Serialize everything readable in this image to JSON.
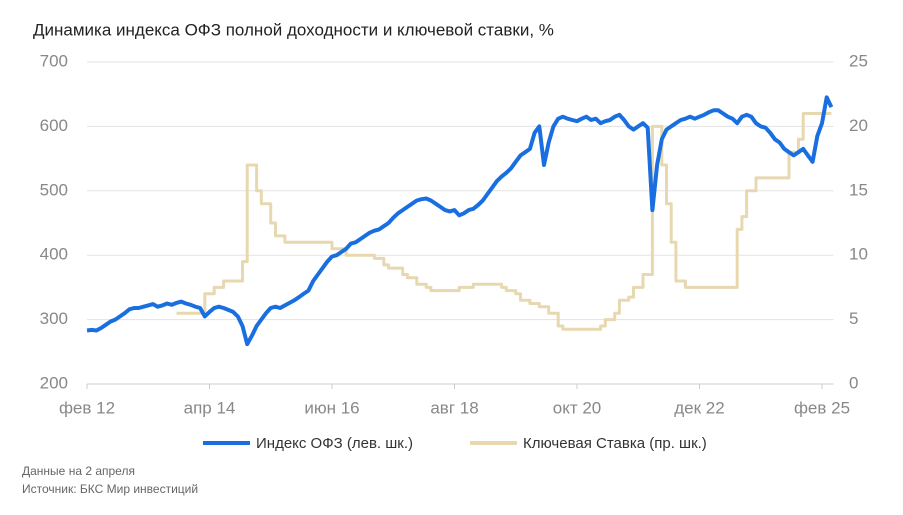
{
  "chart_data": {
    "type": "line",
    "title": "Динамика индекса ОФЗ полной доходности и ключевой ставки, %",
    "note": "Данные на 2 апреля",
    "source": "Источник: БКС Мир инвестиций",
    "x": [
      "2012-02",
      "2012-03",
      "2012-04",
      "2012-05",
      "2012-06",
      "2012-07",
      "2012-08",
      "2012-09",
      "2012-10",
      "2012-11",
      "2012-12",
      "2013-01",
      "2013-02",
      "2013-03",
      "2013-04",
      "2013-05",
      "2013-06",
      "2013-07",
      "2013-08",
      "2013-09",
      "2013-10",
      "2013-11",
      "2013-12",
      "2014-01",
      "2014-02",
      "2014-03",
      "2014-04",
      "2014-05",
      "2014-06",
      "2014-07",
      "2014-08",
      "2014-09",
      "2014-10",
      "2014-11",
      "2014-12",
      "2015-01",
      "2015-02",
      "2015-03",
      "2015-04",
      "2015-05",
      "2015-06",
      "2015-07",
      "2015-08",
      "2015-09",
      "2015-10",
      "2015-11",
      "2015-12",
      "2016-01",
      "2016-02",
      "2016-03",
      "2016-04",
      "2016-05",
      "2016-06",
      "2016-07",
      "2016-08",
      "2016-09",
      "2016-10",
      "2016-11",
      "2016-12",
      "2017-01",
      "2017-02",
      "2017-03",
      "2017-04",
      "2017-05",
      "2017-06",
      "2017-07",
      "2017-08",
      "2017-09",
      "2017-10",
      "2017-11",
      "2017-12",
      "2018-01",
      "2018-02",
      "2018-03",
      "2018-04",
      "2018-05",
      "2018-06",
      "2018-07",
      "2018-08",
      "2018-09",
      "2018-10",
      "2018-11",
      "2018-12",
      "2019-01",
      "2019-02",
      "2019-03",
      "2019-04",
      "2019-05",
      "2019-06",
      "2019-07",
      "2019-08",
      "2019-09",
      "2019-10",
      "2019-11",
      "2019-12",
      "2020-01",
      "2020-02",
      "2020-03",
      "2020-04",
      "2020-05",
      "2020-06",
      "2020-07",
      "2020-08",
      "2020-09",
      "2020-10",
      "2020-11",
      "2020-12",
      "2021-01",
      "2021-02",
      "2021-03",
      "2021-04",
      "2021-05",
      "2021-06",
      "2021-07",
      "2021-08",
      "2021-09",
      "2021-10",
      "2021-11",
      "2021-12",
      "2022-01",
      "2022-02",
      "2022-03",
      "2022-04",
      "2022-05",
      "2022-06",
      "2022-07",
      "2022-08",
      "2022-09",
      "2022-10",
      "2022-11",
      "2022-12",
      "2023-01",
      "2023-02",
      "2023-03",
      "2023-04",
      "2023-05",
      "2023-06",
      "2023-07",
      "2023-08",
      "2023-09",
      "2023-10",
      "2023-11",
      "2023-12",
      "2024-01",
      "2024-02",
      "2024-03",
      "2024-04",
      "2024-05",
      "2024-06",
      "2024-07",
      "2024-08",
      "2024-09",
      "2024-10",
      "2024-11",
      "2024-12",
      "2025-01",
      "2025-02",
      "2025-03",
      "2025-04"
    ],
    "series": [
      {
        "name": "Индекс ОФЗ (лев. шк.)",
        "color": "#1a6fe0",
        "axis": "y",
        "values": [
          283,
          284,
          283,
          287,
          292,
          297,
          300,
          305,
          310,
          316,
          318,
          318,
          320,
          322,
          324,
          320,
          322,
          325,
          323,
          326,
          328,
          325,
          323,
          320,
          318,
          305,
          312,
          318,
          320,
          318,
          315,
          312,
          305,
          290,
          262,
          275,
          290,
          300,
          310,
          318,
          320,
          318,
          322,
          326,
          330,
          335,
          340,
          345,
          360,
          370,
          380,
          390,
          398,
          400,
          405,
          410,
          418,
          420,
          425,
          430,
          435,
          438,
          440,
          445,
          450,
          458,
          465,
          470,
          475,
          480,
          485,
          487,
          488,
          485,
          480,
          475,
          470,
          468,
          470,
          462,
          465,
          470,
          472,
          478,
          485,
          495,
          505,
          515,
          522,
          528,
          535,
          545,
          555,
          560,
          565,
          590,
          600,
          540,
          575,
          600,
          612,
          615,
          612,
          610,
          608,
          612,
          615,
          610,
          612,
          605,
          608,
          610,
          615,
          618,
          610,
          600,
          595,
          600,
          605,
          598,
          470,
          540,
          580,
          595,
          600,
          605,
          610,
          612,
          615,
          612,
          615,
          618,
          622,
          625,
          625,
          620,
          615,
          612,
          605,
          615,
          618,
          615,
          605,
          600,
          598,
          590,
          580,
          575,
          565,
          560,
          555,
          560,
          565,
          555,
          545,
          585,
          605,
          645,
          630
        ]
      },
      {
        "name": "Ключевая Ставка (пр. шк.)",
        "color": "#e8d8b0",
        "axis": "y2",
        "values": [
          null,
          null,
          null,
          null,
          null,
          null,
          null,
          null,
          null,
          null,
          null,
          null,
          null,
          null,
          null,
          null,
          null,
          null,
          null,
          5.5,
          5.5,
          5.5,
          5.5,
          5.5,
          5.5,
          7,
          7,
          7.5,
          7.5,
          8,
          8,
          8,
          8,
          9.5,
          17,
          17,
          15,
          14,
          14,
          12.5,
          11.5,
          11.5,
          11,
          11,
          11,
          11,
          11,
          11,
          11,
          11,
          11,
          11,
          10.5,
          10.5,
          10.5,
          10,
          10,
          10,
          10,
          10,
          10,
          9.75,
          9.75,
          9.25,
          9,
          9,
          9,
          8.5,
          8.25,
          8.25,
          7.75,
          7.75,
          7.5,
          7.25,
          7.25,
          7.25,
          7.25,
          7.25,
          7.25,
          7.5,
          7.5,
          7.5,
          7.75,
          7.75,
          7.75,
          7.75,
          7.75,
          7.75,
          7.5,
          7.25,
          7.25,
          7,
          6.5,
          6.5,
          6.25,
          6.25,
          6,
          6,
          5.5,
          5.5,
          4.5,
          4.25,
          4.25,
          4.25,
          4.25,
          4.25,
          4.25,
          4.25,
          4.25,
          4.5,
          5,
          5,
          5.5,
          6.5,
          6.5,
          6.75,
          7.5,
          7.5,
          8.5,
          8.5,
          20,
          20,
          17,
          14,
          11,
          8,
          8,
          7.5,
          7.5,
          7.5,
          7.5,
          7.5,
          7.5,
          7.5,
          7.5,
          7.5,
          7.5,
          7.5,
          12,
          13,
          15,
          15,
          16,
          16,
          16,
          16,
          16,
          16,
          16,
          18,
          18,
          19,
          21,
          21,
          21,
          21,
          21,
          21,
          21
        ]
      }
    ],
    "xlim": [
      "2012-02",
      "2025-04"
    ],
    "xticks": [
      {
        "value": "2012-02",
        "label": "фев 12"
      },
      {
        "value": "2014-04",
        "label": "апр 14"
      },
      {
        "value": "2016-06",
        "label": "июн 16"
      },
      {
        "value": "2018-08",
        "label": "авг 18"
      },
      {
        "value": "2020-10",
        "label": "окт 20"
      },
      {
        "value": "2022-12",
        "label": "дек 22"
      },
      {
        "value": "2025-02",
        "label": "фев 25"
      }
    ],
    "ylim": [
      200,
      700
    ],
    "yticks": [
      200,
      300,
      400,
      500,
      600,
      700
    ],
    "y2lim": [
      0,
      25
    ],
    "y2ticks": [
      0,
      5,
      10,
      15,
      20,
      25
    ],
    "grid": true
  }
}
